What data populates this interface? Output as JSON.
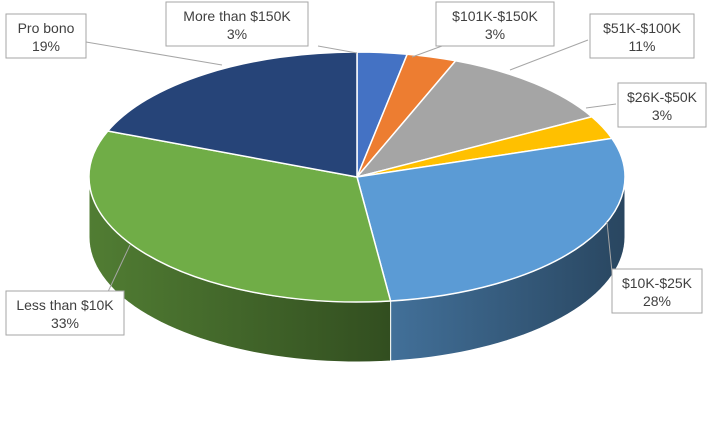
{
  "chart_data": {
    "type": "pie",
    "style": "3d",
    "title": "",
    "legend": "none",
    "slices": [
      {
        "label": "More than $150K",
        "value": 3,
        "value_label": "3%",
        "color": "#4472C4"
      },
      {
        "label": "$101K-$150K",
        "value": 3,
        "value_label": "3%",
        "color": "#ED7D31"
      },
      {
        "label": "$51K-$100K",
        "value": 11,
        "value_label": "11%",
        "color": "#A5A5A5"
      },
      {
        "label": "$26K-$50K",
        "value": 3,
        "value_label": "3%",
        "color": "#FFC000"
      },
      {
        "label": "$10K-$25K",
        "value": 28,
        "value_label": "28%",
        "color": "#5B9BD5"
      },
      {
        "label": "Less than $10K",
        "value": 33,
        "value_label": "33%",
        "color": "#70AD47"
      },
      {
        "label": "Pro bono",
        "value": 19,
        "value_label": "19%",
        "color": "#264478"
      }
    ]
  }
}
